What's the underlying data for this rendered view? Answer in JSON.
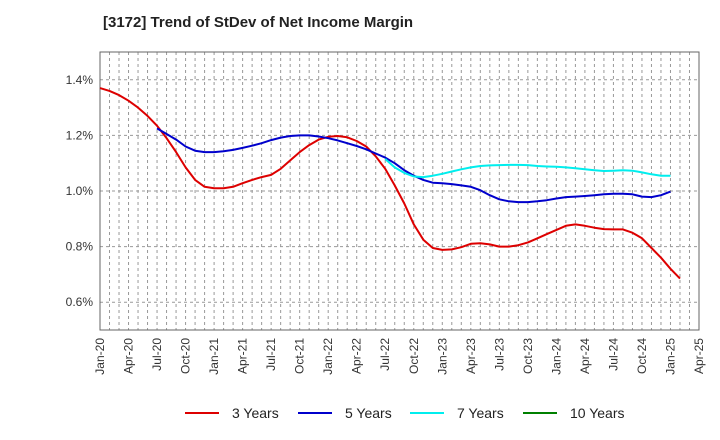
{
  "title": "[3172]  Trend of StDev of Net Income Margin",
  "chart_data": {
    "type": "line",
    "title": "[3172]  Trend of StDev of Net Income Margin",
    "xlabel": "",
    "ylabel": "",
    "ylim": [
      0.5,
      1.5
    ],
    "yticks": [
      0.6,
      0.8,
      1.0,
      1.2,
      1.4
    ],
    "ytick_labels": [
      "0.6%",
      "0.8%",
      "1.0%",
      "1.2%",
      "1.4%"
    ],
    "xtick_labels": [
      "Jan-20",
      "Apr-20",
      "Jul-20",
      "Oct-20",
      "Jan-21",
      "Apr-21",
      "Jul-21",
      "Oct-21",
      "Jan-22",
      "Apr-22",
      "Jul-22",
      "Oct-22",
      "Jan-23",
      "Apr-23",
      "Jul-23",
      "Oct-23",
      "Jan-24",
      "Apr-24",
      "Jul-24",
      "Oct-24",
      "Jan-25",
      "Apr-25"
    ],
    "grid": true,
    "legend_position": "bottom",
    "series": [
      {
        "name": "3 Years",
        "color": "#dd0000",
        "points": [
          [
            "Jan-20",
            1.37
          ],
          [
            "Feb-20",
            1.36
          ],
          [
            "Mar-20",
            1.345
          ],
          [
            "Apr-20",
            1.325
          ],
          [
            "May-20",
            1.3
          ],
          [
            "Jun-20",
            1.27
          ],
          [
            "Jul-20",
            1.235
          ],
          [
            "Aug-20",
            1.19
          ],
          [
            "Sep-20",
            1.14
          ],
          [
            "Oct-20",
            1.085
          ],
          [
            "Nov-20",
            1.04
          ],
          [
            "Dec-20",
            1.015
          ],
          [
            "Jan-21",
            1.01
          ],
          [
            "Feb-21",
            1.01
          ],
          [
            "Mar-21",
            1.015
          ],
          [
            "Apr-21",
            1.028
          ],
          [
            "May-21",
            1.04
          ],
          [
            "Jun-21",
            1.05
          ],
          [
            "Jul-21",
            1.058
          ],
          [
            "Aug-21",
            1.08
          ],
          [
            "Sep-21",
            1.11
          ],
          [
            "Oct-21",
            1.14
          ],
          [
            "Nov-21",
            1.165
          ],
          [
            "Dec-21",
            1.185
          ],
          [
            "Jan-22",
            1.195
          ],
          [
            "Feb-22",
            1.198
          ],
          [
            "Mar-22",
            1.193
          ],
          [
            "Apr-22",
            1.18
          ],
          [
            "May-22",
            1.16
          ],
          [
            "Jun-22",
            1.125
          ],
          [
            "Jul-22",
            1.08
          ],
          [
            "Aug-22",
            1.02
          ],
          [
            "Sep-22",
            0.955
          ],
          [
            "Oct-22",
            0.88
          ],
          [
            "Nov-22",
            0.825
          ],
          [
            "Dec-22",
            0.795
          ],
          [
            "Jan-23",
            0.788
          ],
          [
            "Feb-23",
            0.79
          ],
          [
            "Mar-23",
            0.798
          ],
          [
            "Apr-23",
            0.81
          ],
          [
            "May-23",
            0.812
          ],
          [
            "Jun-23",
            0.808
          ],
          [
            "Jul-23",
            0.8
          ],
          [
            "Aug-23",
            0.8
          ],
          [
            "Sep-23",
            0.805
          ],
          [
            "Oct-23",
            0.815
          ],
          [
            "Nov-23",
            0.83
          ],
          [
            "Dec-23",
            0.845
          ],
          [
            "Jan-24",
            0.86
          ],
          [
            "Feb-24",
            0.875
          ],
          [
            "Mar-24",
            0.88
          ],
          [
            "Apr-24",
            0.875
          ],
          [
            "May-24",
            0.868
          ],
          [
            "Jun-24",
            0.863
          ],
          [
            "Jul-24",
            0.862
          ],
          [
            "Aug-24",
            0.862
          ],
          [
            "Sep-24",
            0.85
          ],
          [
            "Oct-24",
            0.83
          ],
          [
            "Nov-24",
            0.795
          ],
          [
            "Dec-24",
            0.76
          ],
          [
            "Jan-25",
            0.72
          ],
          [
            "Feb-25",
            0.685
          ]
        ]
      },
      {
        "name": "5 Years",
        "color": "#0000cc",
        "points": [
          [
            "Jul-20",
            1.225
          ],
          [
            "Aug-20",
            1.205
          ],
          [
            "Sep-20",
            1.185
          ],
          [
            "Oct-20",
            1.16
          ],
          [
            "Nov-20",
            1.145
          ],
          [
            "Dec-20",
            1.14
          ],
          [
            "Jan-21",
            1.14
          ],
          [
            "Feb-21",
            1.143
          ],
          [
            "Mar-21",
            1.148
          ],
          [
            "Apr-21",
            1.155
          ],
          [
            "May-21",
            1.163
          ],
          [
            "Jun-21",
            1.172
          ],
          [
            "Jul-21",
            1.183
          ],
          [
            "Aug-21",
            1.192
          ],
          [
            "Sep-21",
            1.198
          ],
          [
            "Oct-21",
            1.2
          ],
          [
            "Nov-21",
            1.2
          ],
          [
            "Dec-21",
            1.196
          ],
          [
            "Jan-22",
            1.19
          ],
          [
            "Feb-22",
            1.182
          ],
          [
            "Mar-22",
            1.172
          ],
          [
            "Apr-22",
            1.162
          ],
          [
            "May-22",
            1.15
          ],
          [
            "Jun-22",
            1.135
          ],
          [
            "Jul-22",
            1.12
          ],
          [
            "Aug-22",
            1.1
          ],
          [
            "Sep-22",
            1.075
          ],
          [
            "Oct-22",
            1.055
          ],
          [
            "Nov-22",
            1.04
          ],
          [
            "Dec-22",
            1.03
          ],
          [
            "Jan-23",
            1.028
          ],
          [
            "Feb-23",
            1.025
          ],
          [
            "Mar-23",
            1.02
          ],
          [
            "Apr-23",
            1.015
          ],
          [
            "May-23",
            1.003
          ],
          [
            "Jun-23",
            0.985
          ],
          [
            "Jul-23",
            0.97
          ],
          [
            "Aug-23",
            0.963
          ],
          [
            "Sep-23",
            0.96
          ],
          [
            "Oct-23",
            0.96
          ],
          [
            "Nov-23",
            0.963
          ],
          [
            "Dec-23",
            0.967
          ],
          [
            "Jan-24",
            0.973
          ],
          [
            "Feb-24",
            0.978
          ],
          [
            "Mar-24",
            0.98
          ],
          [
            "Apr-24",
            0.982
          ],
          [
            "May-24",
            0.985
          ],
          [
            "Jun-24",
            0.988
          ],
          [
            "Jul-24",
            0.99
          ],
          [
            "Aug-24",
            0.99
          ],
          [
            "Sep-24",
            0.988
          ],
          [
            "Oct-24",
            0.98
          ],
          [
            "Nov-24",
            0.978
          ],
          [
            "Dec-24",
            0.985
          ],
          [
            "Jan-25",
            0.998
          ]
        ]
      },
      {
        "name": "7 Years",
        "color": "#00eeee",
        "points": [
          [
            "Jul-22",
            1.115
          ],
          [
            "Aug-22",
            1.085
          ],
          [
            "Sep-22",
            1.065
          ],
          [
            "Oct-22",
            1.052
          ],
          [
            "Nov-22",
            1.05
          ],
          [
            "Dec-22",
            1.055
          ],
          [
            "Jan-23",
            1.062
          ],
          [
            "Feb-23",
            1.07
          ],
          [
            "Mar-23",
            1.078
          ],
          [
            "Apr-23",
            1.085
          ],
          [
            "May-23",
            1.09
          ],
          [
            "Jun-23",
            1.092
          ],
          [
            "Jul-23",
            1.093
          ],
          [
            "Aug-23",
            1.094
          ],
          [
            "Sep-23",
            1.094
          ],
          [
            "Oct-23",
            1.093
          ],
          [
            "Nov-23",
            1.09
          ],
          [
            "Dec-23",
            1.088
          ],
          [
            "Jan-24",
            1.087
          ],
          [
            "Feb-24",
            1.085
          ],
          [
            "Mar-24",
            1.082
          ],
          [
            "Apr-24",
            1.078
          ],
          [
            "May-24",
            1.075
          ],
          [
            "Jun-24",
            1.072
          ],
          [
            "Jul-24",
            1.073
          ],
          [
            "Aug-24",
            1.075
          ],
          [
            "Sep-24",
            1.073
          ],
          [
            "Oct-24",
            1.067
          ],
          [
            "Nov-24",
            1.06
          ],
          [
            "Dec-24",
            1.055
          ],
          [
            "Jan-25",
            1.055
          ]
        ]
      },
      {
        "name": "10 Years",
        "color": "#008000",
        "points": []
      }
    ]
  }
}
